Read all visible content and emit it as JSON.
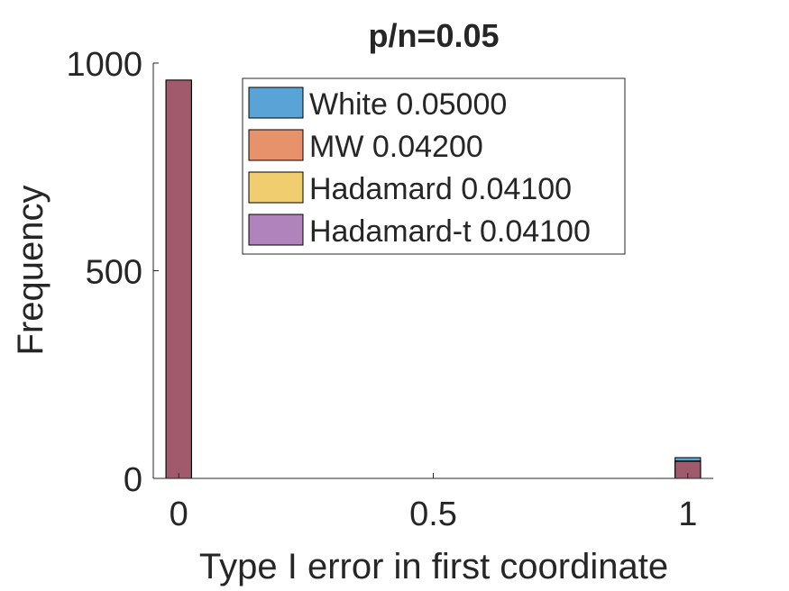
{
  "chart_data": {
    "type": "bar",
    "title": "p/n=0.05",
    "xlabel": "Type I error in first coordinate",
    "ylabel": "Frequency",
    "xlim": [
      -0.05,
      1.05
    ],
    "ylim": [
      0,
      1000
    ],
    "xticks": [
      0,
      0.5,
      1
    ],
    "xtick_labels": [
      "0",
      "0.5",
      "1"
    ],
    "yticks": [
      0,
      500,
      1000
    ],
    "ytick_labels": [
      "0",
      "500",
      "1000"
    ],
    "bin_width": 0.05,
    "categories": [
      0,
      1
    ],
    "series": [
      {
        "name": "White",
        "legend_label": "White 0.05000",
        "color": "#0072BD",
        "values": [
          950,
          50
        ]
      },
      {
        "name": "MW",
        "legend_label": "MW 0.04200",
        "color": "#D95319",
        "values": [
          958,
          42
        ]
      },
      {
        "name": "Hadamard",
        "legend_label": "Hadamard 0.04100",
        "color": "#EDB120",
        "values": [
          959,
          41
        ]
      },
      {
        "name": "Hadamard-t",
        "legend_label": "Hadamard-t 0.04100",
        "color": "#7E2F8E",
        "values": [
          959,
          41
        ]
      }
    ],
    "bar_color_overlap": "#A05A6B",
    "legend_position": "top-right",
    "grid": false
  }
}
